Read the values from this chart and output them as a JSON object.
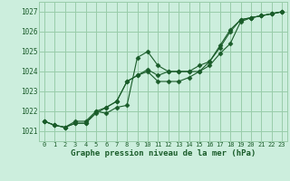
{
  "title": "Graphe pression niveau de la mer (hPa)",
  "bg_color": "#cceedd",
  "grid_color": "#99ccaa",
  "line_color": "#1a5c2a",
  "marker_color": "#1a5c2a",
  "xlim": [
    -0.5,
    23.5
  ],
  "ylim": [
    1020.5,
    1027.5
  ],
  "yticks": [
    1021,
    1022,
    1023,
    1024,
    1025,
    1026,
    1027
  ],
  "xticks": [
    0,
    1,
    2,
    3,
    4,
    5,
    6,
    7,
    8,
    9,
    10,
    11,
    12,
    13,
    14,
    15,
    16,
    17,
    18,
    19,
    20,
    21,
    22,
    23
  ],
  "series": [
    [
      1021.5,
      1021.3,
      1021.2,
      1021.4,
      1021.4,
      1022.0,
      1021.9,
      1022.2,
      1022.3,
      1024.7,
      1025.0,
      1024.3,
      1024.0,
      1024.0,
      1024.0,
      1024.0,
      1024.5,
      1025.2,
      1026.0,
      1026.6,
      1026.7,
      1026.8,
      1026.9,
      1027.0
    ],
    [
      1021.5,
      1021.3,
      1021.2,
      1021.4,
      1021.4,
      1021.9,
      1022.2,
      1022.5,
      1023.5,
      1023.8,
      1024.0,
      1023.5,
      1023.5,
      1023.5,
      1023.7,
      1024.0,
      1024.3,
      1024.9,
      1025.4,
      1026.5,
      1026.7,
      1026.8,
      1026.9,
      1027.0
    ],
    [
      1021.5,
      1021.3,
      1021.2,
      1021.5,
      1021.5,
      1022.0,
      1022.2,
      1022.5,
      1023.5,
      1023.8,
      1024.1,
      1023.8,
      1024.0,
      1024.0,
      1024.0,
      1024.3,
      1024.5,
      1025.3,
      1026.1,
      1026.6,
      1026.7,
      1026.8,
      1026.9,
      1027.0
    ]
  ]
}
